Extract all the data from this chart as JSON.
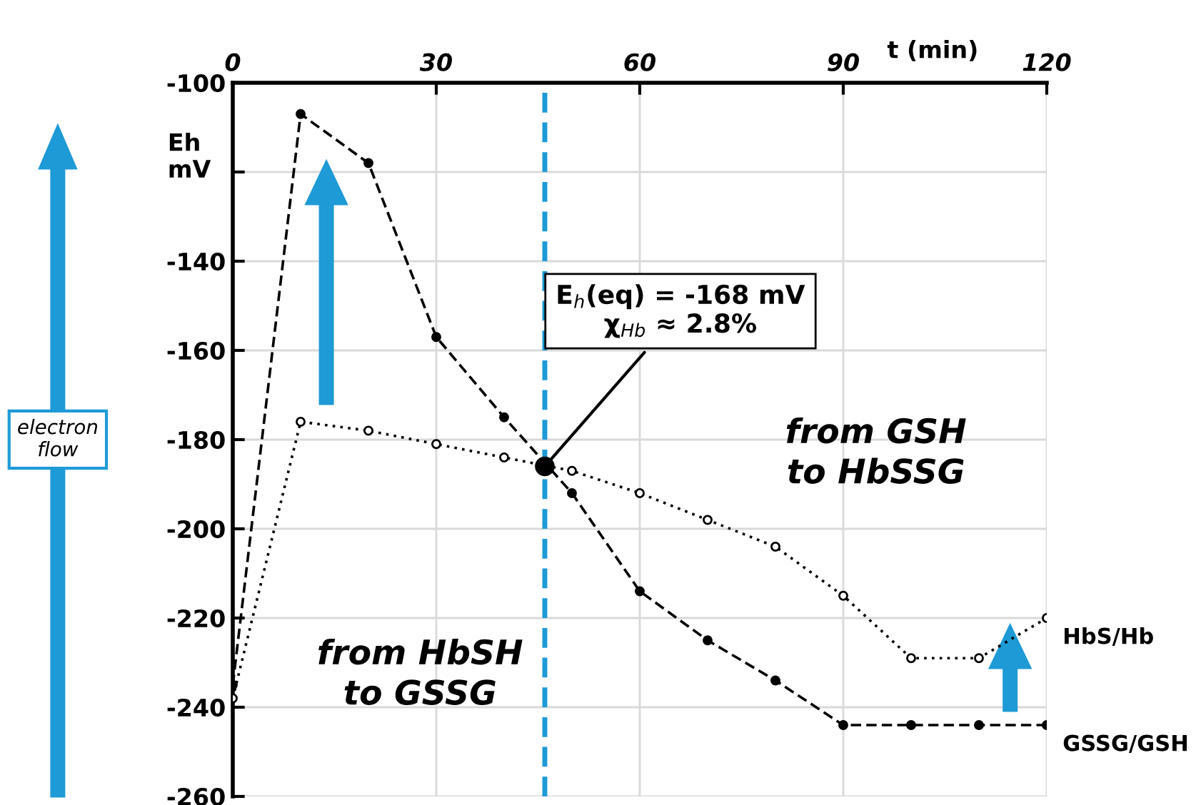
{
  "chart_data": {
    "type": "line",
    "xlabel": "t (min)",
    "ylabel": "Eh\nmV",
    "xlim": [
      0,
      120
    ],
    "xticks": [
      0,
      30,
      60,
      90,
      120
    ],
    "ylim": [
      -260,
      -100
    ],
    "yticks": [
      -100,
      {
        "value": -120,
        "label": null
      },
      -140,
      -160,
      -180,
      -200,
      -220,
      -240,
      -260
    ],
    "grid": true,
    "marker": "circle",
    "series": [
      {
        "name": "HbS/Hb",
        "color": "#000000",
        "line_style": "dotted",
        "x": [
          0,
          10,
          20,
          30,
          40,
          50,
          60,
          70,
          80,
          90,
          100,
          110,
          120
        ],
        "values": [
          -238,
          -176,
          -178,
          -181,
          -184,
          -187,
          -192,
          -198,
          -204,
          -215,
          -229,
          -229,
          -220
        ]
      },
      {
        "name": "GSSG/GSH",
        "color": "#000000",
        "line_style": "dashed",
        "x": [
          0,
          10,
          20,
          30,
          40,
          50,
          60,
          70,
          80,
          90,
          100,
          110,
          120
        ],
        "values": [
          -235,
          -107,
          -118,
          -157,
          -175,
          -192,
          -214,
          -225,
          -234,
          -244,
          -244,
          -244,
          -244
        ]
      },
      {
        "type": "scatter",
        "color": "#000000",
        "x": [
          46
        ],
        "values": [
          -186
        ]
      }
    ],
    "ref_lines": [
      {
        "axis": "x",
        "value": 46,
        "color": "#1e9ad6",
        "line_style": "dashed"
      }
    ],
    "annotations": [
      {
        "text": "E$_{h}$(eq) = -168 mV\nχ$_{Hb}$ ≈ 2.8%",
        "x": 46,
        "y": -186
      },
      "from HbSH\nto GSSG",
      "from GSH\nto HbSSG",
      "electron\nflow"
    ]
  }
}
